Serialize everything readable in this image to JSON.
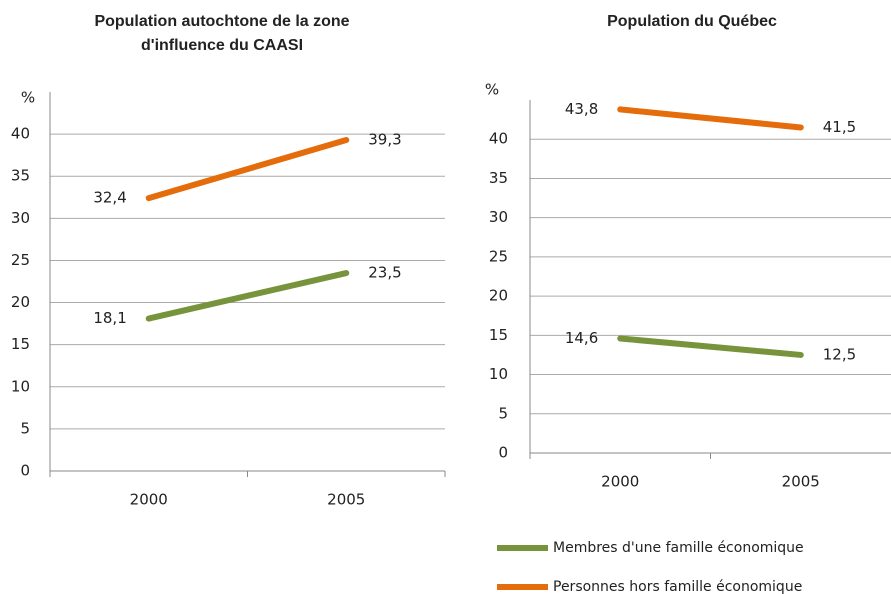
{
  "chart_data": [
    {
      "type": "line",
      "title": "Population autochtone de la zone",
      "title_line2": "d'influence du CAASI",
      "y_label": "%",
      "categories": [
        "2000",
        "2005"
      ],
      "series": [
        {
          "color": "#77933c",
          "values": [
            18.1,
            23.5
          ],
          "value_labels": [
            "18,1",
            "23,5"
          ]
        },
        {
          "color": "#e46c0a",
          "values": [
            32.4,
            39.3
          ],
          "value_labels": [
            "32,4",
            "39,3"
          ]
        }
      ],
      "ylim": [
        0,
        45
      ],
      "yticks": [
        0,
        5,
        10,
        15,
        20,
        25,
        30,
        35,
        40
      ],
      "grid": true
    },
    {
      "type": "line",
      "title": "Population du Québec",
      "y_label": "%",
      "categories": [
        "2000",
        "2005"
      ],
      "series": [
        {
          "name": "Membres d'une famille économique",
          "color": "#77933c",
          "values": [
            14.6,
            12.5
          ],
          "value_labels": [
            "14,6",
            "12,5"
          ]
        },
        {
          "name": "Personnes hors famille économique",
          "color": "#e46c0a",
          "values": [
            43.8,
            41.5
          ],
          "value_labels": [
            "43,8",
            "41,5"
          ]
        }
      ],
      "ylim": [
        0,
        45
      ],
      "yticks": [
        0,
        5,
        10,
        15,
        20,
        25,
        30,
        35,
        40
      ],
      "grid": true,
      "legend": "bottom"
    }
  ]
}
